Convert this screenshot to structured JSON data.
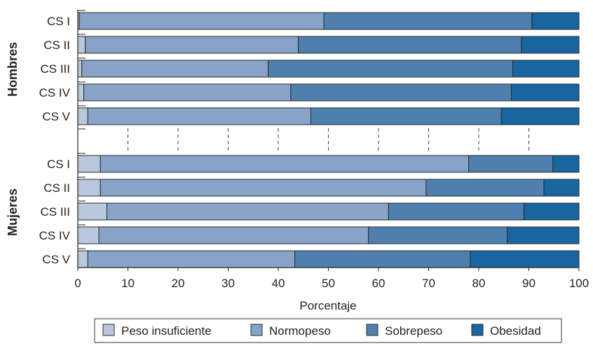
{
  "chart_data": {
    "type": "bar",
    "orientation": "horizontal",
    "stacked": true,
    "xlabel": "Porcentaje",
    "xlim": [
      0,
      100
    ],
    "xticks": [
      0,
      10,
      20,
      30,
      40,
      50,
      60,
      70,
      80,
      90,
      100
    ],
    "grid": "dashed vertical",
    "legend_position": "bottom",
    "series": [
      {
        "name": "Peso insuficiente",
        "color": "#b9c8dc"
      },
      {
        "name": "Normopeso",
        "color": "#87a3c7"
      },
      {
        "name": "Sobrepeso",
        "color": "#4f7fae"
      },
      {
        "name": "Obesidad",
        "color": "#1766a0"
      }
    ],
    "groups": [
      {
        "label": "Hombres",
        "categories": [
          "CS I",
          "CS II",
          "CS III",
          "CS IV",
          "CS V"
        ],
        "values": [
          [
            0.3,
            48.8,
            41.5,
            9.4
          ],
          [
            1.5,
            42.5,
            44.5,
            11.5
          ],
          [
            0.8,
            37.2,
            48.8,
            13.2
          ],
          [
            1.2,
            41.3,
            44.0,
            13.5
          ],
          [
            2.0,
            44.5,
            38.0,
            15.5
          ]
        ]
      },
      {
        "label": "Mujeres",
        "categories": [
          "CS I",
          "CS II",
          "CS III",
          "CS IV",
          "CS V"
        ],
        "values": [
          [
            4.5,
            73.5,
            16.8,
            5.2
          ],
          [
            4.5,
            65.0,
            23.5,
            7.0
          ],
          [
            5.8,
            56.2,
            27.0,
            11.0
          ],
          [
            4.2,
            53.8,
            27.7,
            14.3
          ],
          [
            2.0,
            41.3,
            35.0,
            21.7
          ]
        ]
      }
    ]
  }
}
